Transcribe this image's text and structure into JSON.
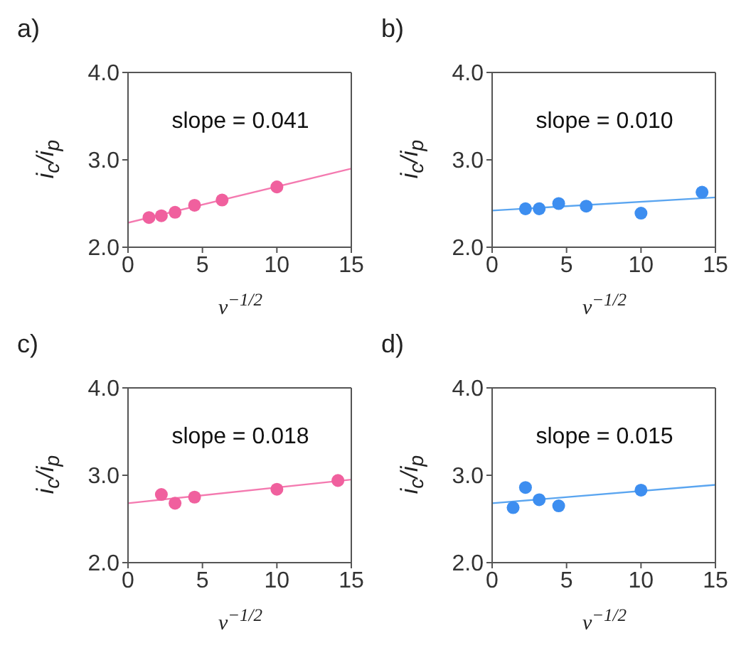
{
  "chart_data": [
    {
      "type": "scatter",
      "title": "a)",
      "xlabel": "ν$^{−1/2}$",
      "ylabel": "i$_{c}$/i$_{p}$",
      "annotations": [
        "slope = 0.041"
      ],
      "xlim": [
        0,
        15
      ],
      "xticks": [
        0,
        5,
        10,
        15
      ],
      "ylim": [
        2,
        4
      ],
      "yticks": [
        {
          "value": 2,
          "label": "2.0"
        },
        {
          "value": 3,
          "label": "3.0"
        },
        {
          "value": 4,
          "label": "4.0"
        }
      ],
      "series": [
        {
          "marker": "circle",
          "color": "#f0609e",
          "x": [
            1.41,
            2.24,
            3.16,
            4.47,
            6.32,
            10
          ],
          "values": [
            2.34,
            2.36,
            2.4,
            2.48,
            2.54,
            2.69
          ]
        },
        {
          "type": "line",
          "marker": "none",
          "color": "#f47ab0",
          "x": [
            0,
            15
          ],
          "values": [
            2.28,
            2.9
          ]
        }
      ]
    },
    {
      "type": "scatter",
      "title": "b)",
      "xlabel": "ν$^{−1/2}$",
      "ylabel": "i$_{c}$/i$_{p}$",
      "annotations": [
        "slope = 0.010"
      ],
      "xlim": [
        0,
        15
      ],
      "xticks": [
        0,
        5,
        10,
        15
      ],
      "ylim": [
        2,
        4
      ],
      "yticks": [
        {
          "value": 2,
          "label": "2.0"
        },
        {
          "value": 3,
          "label": "3.0"
        },
        {
          "value": 4,
          "label": "4.0"
        }
      ],
      "series": [
        {
          "marker": "circle",
          "color": "#3d8ef0",
          "x": [
            2.24,
            3.16,
            4.47,
            6.32,
            10,
            14.1
          ],
          "values": [
            2.44,
            2.44,
            2.5,
            2.47,
            2.39,
            2.63
          ]
        },
        {
          "type": "line",
          "marker": "none",
          "color": "#5aa5f0",
          "x": [
            0,
            15
          ],
          "values": [
            2.42,
            2.57
          ]
        }
      ]
    },
    {
      "type": "scatter",
      "title": "c)",
      "xlabel": "ν$^{−1/2}$",
      "ylabel": "i$_{c}$/i$_{p}$",
      "annotations": [
        "slope = 0.018"
      ],
      "xlim": [
        0,
        15
      ],
      "xticks": [
        0,
        5,
        10,
        15
      ],
      "ylim": [
        2,
        4
      ],
      "yticks": [
        {
          "value": 2,
          "label": "2.0"
        },
        {
          "value": 3,
          "label": "3.0"
        },
        {
          "value": 4,
          "label": "4.0"
        }
      ],
      "series": [
        {
          "marker": "circle",
          "color": "#f0609e",
          "x": [
            2.24,
            3.16,
            4.47,
            10,
            14.1
          ],
          "values": [
            2.78,
            2.68,
            2.75,
            2.84,
            2.94
          ]
        },
        {
          "type": "line",
          "marker": "none",
          "color": "#f47ab0",
          "x": [
            0,
            15
          ],
          "values": [
            2.68,
            2.95
          ]
        }
      ]
    },
    {
      "type": "scatter",
      "title": "d)",
      "xlabel": "ν$^{−1/2}$",
      "ylabel": "i$_{c}$/i$_{p}$",
      "annotations": [
        "slope = 0.015"
      ],
      "xlim": [
        0,
        15
      ],
      "xticks": [
        0,
        5,
        10,
        15
      ],
      "ylim": [
        2,
        4
      ],
      "yticks": [
        {
          "value": 2,
          "label": "2.0"
        },
        {
          "value": 3,
          "label": "3.0"
        },
        {
          "value": 4,
          "label": "4.0"
        }
      ],
      "series": [
        {
          "marker": "circle",
          "color": "#3d8ef0",
          "x": [
            1.41,
            2.24,
            3.16,
            4.47,
            10
          ],
          "values": [
            2.63,
            2.86,
            2.72,
            2.65,
            2.83
          ]
        },
        {
          "type": "line",
          "marker": "none",
          "color": "#5aa5f0",
          "x": [
            0,
            15
          ],
          "values": [
            2.68,
            2.89
          ]
        }
      ]
    }
  ]
}
